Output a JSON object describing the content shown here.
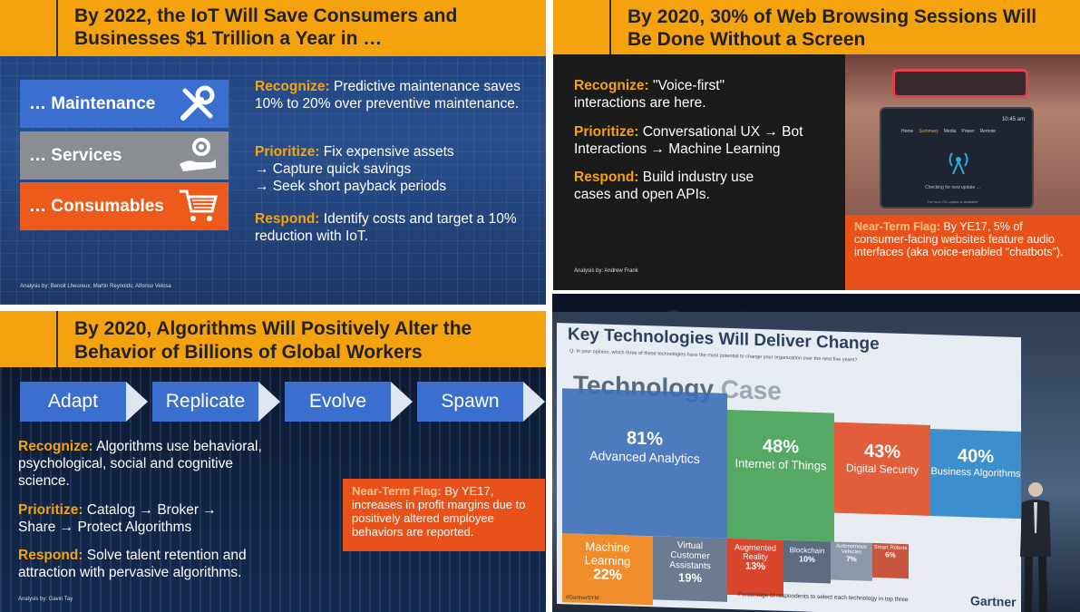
{
  "panel1": {
    "title_line1": "By 2022, the IoT Will Save Consumers and",
    "title_line2": "Businesses $1 Trillion a Year in …",
    "boxes": [
      {
        "label": "… Maintenance",
        "color": "#3b6fcf"
      },
      {
        "label": "… Services",
        "color": "#8a8d92"
      },
      {
        "label": "… Consumables",
        "color": "#ec5a1c"
      }
    ],
    "recognize_label": "Recognize:",
    "recognize_text": "Predictive maintenance saves 10% to 20% over preventive maintenance.",
    "prioritize_label": "Prioritize:",
    "prioritize_lines": [
      "Fix expensive assets",
      "→ Capture quick savings",
      "→ Seek short payback periods"
    ],
    "respond_label": "Respond:",
    "respond_text": "Identify costs and target a 10% reduction with IoT.",
    "author": "Analysis by: Benoit Lheureux; Martin Reynolds; Alfonso Velosa"
  },
  "panel2": {
    "title_line1": "By 2020, 30% of Web Browsing Sessions Will",
    "title_line2": "Be Done Without a Screen",
    "recognize_label": "Recognize:",
    "recognize_text": "\"Voice-first\" interactions are here.",
    "prioritize_label": "Prioritize:",
    "prioritize_text": "Conversational UX → Bot Interactions → Machine Learning",
    "respond_label": "Respond:",
    "respond_text": "Build industry use cases and open APIs.",
    "flag_label": "Near-Term Flag:",
    "flag_text": "By YE17, 5% of consumer-facing websites feature audio interfaces (aka voice-enabled \"chatbots\").",
    "author": "Analysis by: Andrew Frank",
    "screen_time": "10:45 am",
    "screen_tabs": [
      "Home",
      "Summary",
      "Media",
      "Power",
      "Remote"
    ],
    "screen_status": "Checking for new update ...",
    "screen_note": "The new OS update is available"
  },
  "panel3": {
    "title_line1": "By 2020, Algorithms Will Positively Alter the",
    "title_line2": "Behavior of Billions of Global Workers",
    "steps": [
      "Adapt",
      "Replicate",
      "Evolve",
      "Spawn"
    ],
    "recognize_label": "Recognize:",
    "recognize_text": "Algorithms use behavioral, psychological, social and cognitive science.",
    "prioritize_label": "Prioritize:",
    "prioritize_text": "Catalog → Broker → Share → Protect Algorithms",
    "respond_label": "Respond:",
    "respond_text": "Solve talent retention and attraction with pervasive algorithms.",
    "flag_label": "Near-Term Flag:",
    "flag_text": "By YE17, increases in profit margins due to positively altered employee behaviors are reported.",
    "author": "Analysis by: Gavin Tay"
  },
  "panel4": {
    "slide_title": "Key Technologies Will Deliver Change",
    "question": "Q: In your opinion, which three of these technologies have the most potential to change your organization over the next five years?",
    "bg_title_1": "Technology",
    "bg_title_2": "Case",
    "tiles": [
      {
        "pct": "81%",
        "label": "Advanced Analytics",
        "color": "#3d6fb8"
      },
      {
        "pct": "48%",
        "label": "Internet of Things",
        "color": "#4aa35a"
      },
      {
        "pct": "43%",
        "label": "Digital Security",
        "color": "#e2512a"
      },
      {
        "pct": "40%",
        "label": "Business Algorithms",
        "color": "#2f87c9"
      },
      {
        "pct": "22%",
        "label": "Machine Learning",
        "color": "#f08d2a"
      },
      {
        "pct": "19%",
        "label": "Virtual Customer Assistants",
        "color": "#6a7b92"
      },
      {
        "pct": "13%",
        "label": "Augmented Reality",
        "color": "#d9452d"
      },
      {
        "pct": "10%",
        "label": "Blockchain",
        "color": "#5b6b80"
      },
      {
        "pct": "7%",
        "label": "Autonomous Vehicles",
        "color": "#8d99a8"
      },
      {
        "pct": "6%",
        "label": "Smart Robots",
        "color": "#c8553d"
      }
    ],
    "footnote": "Percentage of respondents to select each technology in top three",
    "brand": "Gartner",
    "hashtag": "#GartnerSYM"
  }
}
